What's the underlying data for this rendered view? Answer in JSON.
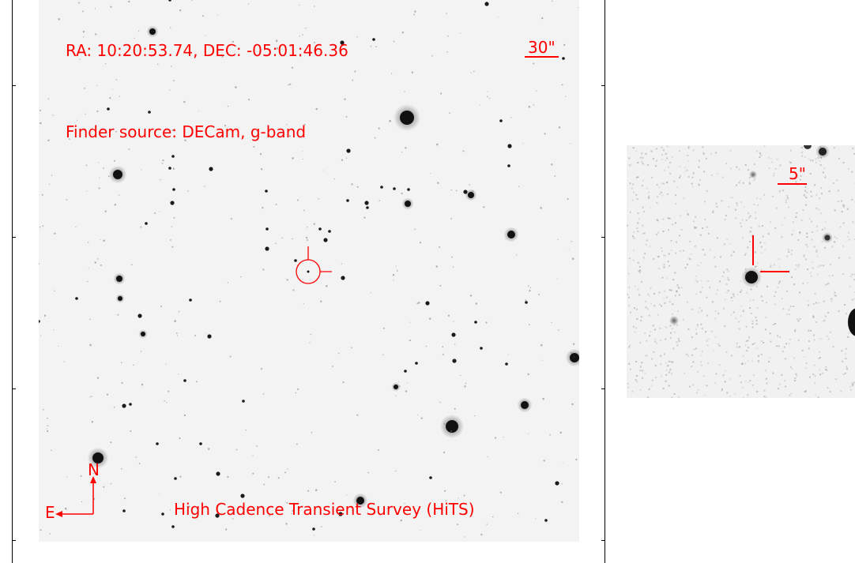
{
  "finder": {
    "coords_label": "RA: 10:20:53.74, DEC: -05:01:46.36",
    "source_label": "Finder source: DECam, g-band",
    "survey_label": "High Cadence Transient Survey (HiTS)",
    "main_scale_label": "30\"",
    "zoom_scale_label": "5\"",
    "north_label": "N",
    "east_label": "E"
  },
  "colors": {
    "annotation": "#ff0000",
    "sky": "#f3f3f3",
    "stars": "#111111"
  }
}
